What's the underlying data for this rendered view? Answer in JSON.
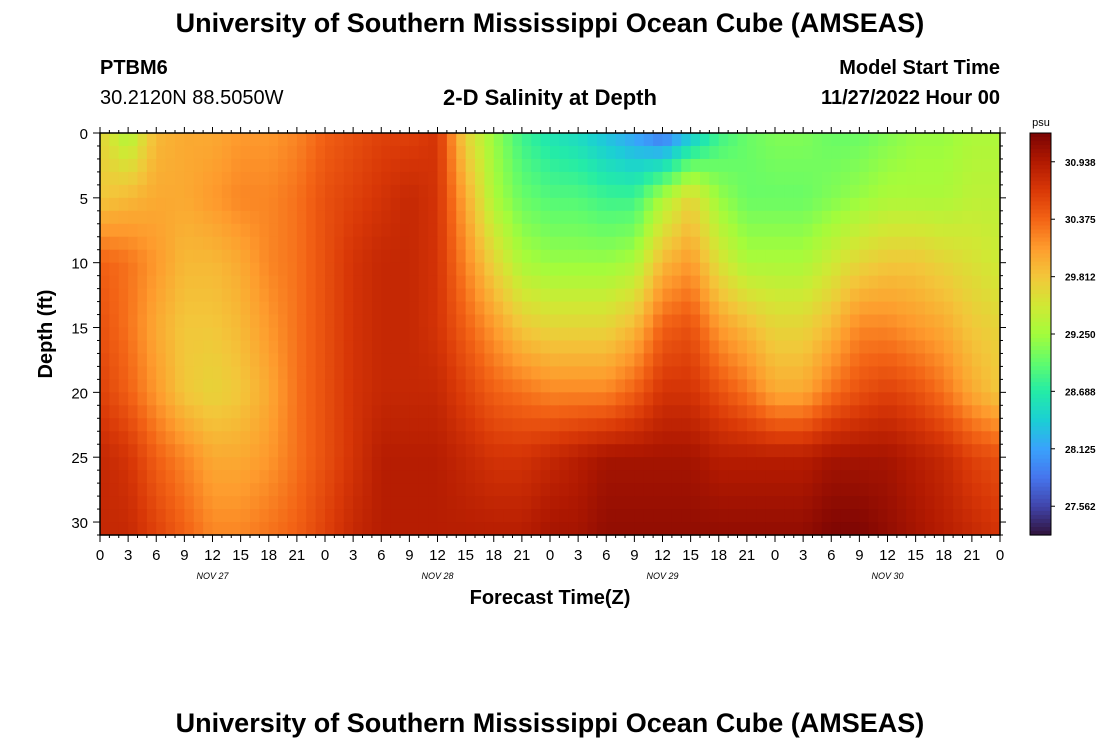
{
  "page": {
    "title": "University of Southern Mississippi Ocean Cube (AMSEAS)",
    "footer_title": "University of Southern Mississippi Ocean Cube (AMSEAS)",
    "station": "PTBM6",
    "coords": "30.2120N  88.5050W",
    "chart_title": "2-D Salinity at Depth",
    "model_start_label": "Model Start Time",
    "model_start_value": "11/27/2022 Hour 00"
  },
  "chart_data": {
    "type": "heatmap",
    "title": "2-D Salinity at Depth",
    "xlabel": "Forecast Time(Z)",
    "ylabel": "Depth (ft)",
    "x_range_hours": [
      0,
      96
    ],
    "ylim": [
      0,
      31
    ],
    "y_inverted": true,
    "x_ticks": [
      "0",
      "3",
      "6",
      "9",
      "12",
      "15",
      "18",
      "21",
      "0",
      "3",
      "6",
      "9",
      "12",
      "15",
      "18",
      "21",
      "0",
      "3",
      "6",
      "9",
      "12",
      "15",
      "18",
      "21",
      "0",
      "3",
      "6",
      "9",
      "12",
      "15",
      "18",
      "21",
      "0"
    ],
    "x_tick_hours": [
      0,
      3,
      6,
      9,
      12,
      15,
      18,
      21,
      24,
      27,
      30,
      33,
      36,
      39,
      42,
      45,
      48,
      51,
      54,
      57,
      60,
      63,
      66,
      69,
      72,
      75,
      78,
      81,
      84,
      87,
      90,
      93,
      96
    ],
    "y_ticks": [
      "0",
      "5",
      "10",
      "15",
      "20",
      "25",
      "30"
    ],
    "y_tick_values": [
      0,
      5,
      10,
      15,
      20,
      25,
      30
    ],
    "day_labels": [
      {
        "label": "NOV 27",
        "hour": 12
      },
      {
        "label": "NOV 28",
        "hour": 36
      },
      {
        "label": "NOV 29",
        "hour": 60
      },
      {
        "label": "NOV 30",
        "hour": 84
      }
    ],
    "colorbar": {
      "unit": "psu",
      "min": 27.28,
      "max": 31.22,
      "ticks": [
        "30.938",
        "30.375",
        "29.812",
        "29.250",
        "28.688",
        "28.125",
        "27.562"
      ],
      "tick_values": [
        30.938,
        30.375,
        29.812,
        29.25,
        28.688,
        28.125,
        27.562
      ],
      "colors": [
        "#30123b",
        "#4145ab",
        "#4675ed",
        "#39a2fc",
        "#1bcfd4",
        "#24eca6",
        "#61fc6c",
        "#a4fc3b",
        "#d1e834",
        "#f3c63a",
        "#fe9b2d",
        "#f36315",
        "#d93807",
        "#b11901",
        "#7a0403"
      ]
    },
    "salinity_grid": {
      "x_hours": [
        0,
        3,
        6,
        9,
        12,
        15,
        18,
        21,
        24,
        27,
        30,
        33,
        36,
        39,
        42,
        45,
        48,
        51,
        54,
        57,
        60,
        63,
        66,
        69,
        72,
        75,
        78,
        81,
        84,
        87,
        90,
        93,
        96
      ],
      "depths_ft": [
        0,
        5,
        10,
        15,
        20,
        25,
        31
      ],
      "values": [
        [
          29.7,
          29.3,
          29.9,
          30.0,
          30.0,
          30.1,
          30.1,
          30.2,
          30.4,
          30.5,
          30.6,
          30.6,
          30.7,
          29.7,
          29.2,
          28.8,
          28.6,
          28.5,
          28.3,
          28.1,
          27.8,
          28.3,
          28.8,
          29.0,
          29.1,
          29.1,
          29.0,
          29.0,
          29.1,
          29.2,
          29.2,
          29.3,
          29.3
        ],
        [
          29.8,
          29.9,
          30.0,
          30.0,
          30.1,
          30.2,
          30.2,
          30.3,
          30.5,
          30.6,
          30.7,
          30.8,
          30.7,
          30.0,
          29.3,
          29.0,
          28.9,
          28.9,
          28.8,
          28.8,
          29.3,
          29.7,
          29.2,
          29.0,
          29.0,
          29.0,
          29.1,
          29.2,
          29.3,
          29.3,
          29.3,
          29.4,
          29.4
        ],
        [
          30.4,
          30.3,
          30.1,
          29.9,
          29.9,
          30.0,
          30.2,
          30.3,
          30.5,
          30.7,
          30.8,
          30.8,
          30.7,
          30.2,
          29.7,
          29.3,
          29.2,
          29.2,
          29.2,
          29.3,
          29.9,
          30.1,
          29.6,
          29.3,
          29.3,
          29.3,
          29.5,
          29.7,
          29.8,
          29.8,
          29.7,
          29.6,
          29.5
        ],
        [
          30.5,
          30.3,
          30.0,
          29.8,
          29.8,
          29.9,
          30.1,
          30.3,
          30.5,
          30.7,
          30.8,
          30.8,
          30.7,
          30.4,
          30.1,
          29.8,
          29.7,
          29.7,
          29.7,
          29.9,
          30.4,
          30.5,
          30.1,
          29.9,
          29.7,
          29.7,
          29.9,
          30.2,
          30.2,
          30.1,
          30.0,
          29.8,
          29.7
        ],
        [
          30.6,
          30.4,
          30.1,
          29.8,
          29.7,
          29.8,
          30.0,
          30.3,
          30.5,
          30.7,
          30.8,
          30.8,
          30.8,
          30.6,
          30.4,
          30.3,
          30.2,
          30.2,
          30.2,
          30.4,
          30.7,
          30.7,
          30.5,
          30.3,
          30.0,
          30.0,
          30.3,
          30.5,
          30.6,
          30.5,
          30.3,
          30.0,
          29.8
        ],
        [
          30.8,
          30.7,
          30.4,
          30.2,
          30.0,
          30.0,
          30.1,
          30.3,
          30.5,
          30.7,
          30.9,
          30.9,
          30.9,
          30.8,
          30.7,
          30.7,
          30.8,
          30.9,
          31.0,
          31.0,
          31.0,
          31.0,
          30.9,
          30.9,
          30.9,
          30.9,
          31.0,
          31.0,
          31.0,
          30.9,
          30.8,
          30.6,
          30.5
        ],
        [
          30.8,
          30.8,
          30.6,
          30.4,
          30.2,
          30.2,
          30.3,
          30.4,
          30.6,
          30.8,
          30.9,
          30.9,
          30.9,
          30.9,
          30.9,
          30.9,
          31.0,
          31.0,
          31.1,
          31.1,
          31.1,
          31.1,
          31.1,
          31.1,
          31.1,
          31.1,
          31.2,
          31.2,
          31.1,
          31.0,
          30.9,
          30.8,
          30.7
        ]
      ]
    }
  }
}
